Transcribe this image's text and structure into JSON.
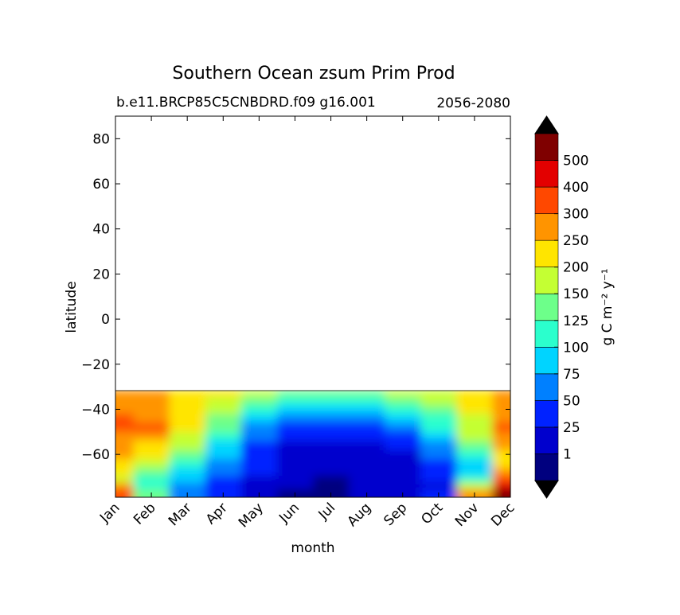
{
  "chart_data": {
    "type": "heatmap",
    "title": "Southern Ocean zsum Prim Prod",
    "subtitle_left": "b.e11.BRCP85C5CNBDRD.f09 g16.001",
    "subtitle_right": "2056-2080",
    "xlabel": "month",
    "ylabel": "latitude",
    "x_ticks": [
      "Jan",
      "Feb",
      "Mar",
      "Apr",
      "May",
      "Jun",
      "Jul",
      "Aug",
      "Sep",
      "Oct",
      "Nov",
      "Dec"
    ],
    "y_ticks": [
      80,
      60,
      40,
      20,
      0,
      -20,
      -40,
      -60
    ],
    "ylim": [
      -79,
      90
    ],
    "data_lat_max": -31.5,
    "colorbar": {
      "label": "g C m⁻² y⁻¹",
      "tick_labels": [
        "1",
        "25",
        "50",
        "75",
        "100",
        "125",
        "150",
        "200",
        "250",
        "300",
        "400",
        "500"
      ],
      "colors": [
        "#00007f",
        "#0000cd",
        "#0022ff",
        "#0080ff",
        "#00d4ff",
        "#2bffcd",
        "#6dff8a",
        "#c4ff33",
        "#ffe500",
        "#ff9400",
        "#ff4800",
        "#e30000",
        "#7f0000"
      ],
      "under_color": "#000000",
      "over_color": "#000000",
      "extend": "both"
    },
    "lat_rows": [
      -33,
      -36,
      -40,
      -44,
      -48,
      -52,
      -56,
      -60,
      -64,
      -68,
      -71,
      -74,
      -77
    ],
    "level_grid": [
      [
        9,
        9,
        8,
        8,
        7,
        6,
        6,
        6,
        7,
        7,
        8,
        9
      ],
      [
        9,
        9,
        8,
        7,
        6,
        5,
        5,
        5,
        6,
        7,
        8,
        9
      ],
      [
        9,
        9,
        8,
        7,
        5,
        4,
        4,
        4,
        5,
        6,
        8,
        9
      ],
      [
        10,
        9,
        8,
        6,
        4,
        3,
        3,
        3,
        4,
        5,
        7,
        9
      ],
      [
        10,
        10,
        8,
        6,
        3,
        2,
        2,
        2,
        3,
        5,
        7,
        10
      ],
      [
        9,
        9,
        7,
        5,
        3,
        2,
        2,
        2,
        2,
        4,
        7,
        9
      ],
      [
        9,
        8,
        7,
        4,
        2,
        1,
        1,
        1,
        2,
        3,
        6,
        9
      ],
      [
        9,
        8,
        6,
        4,
        2,
        1,
        1,
        1,
        1,
        3,
        5,
        8
      ],
      [
        8,
        7,
        5,
        3,
        2,
        1,
        1,
        1,
        1,
        2,
        4,
        8
      ],
      [
        8,
        6,
        4,
        3,
        2,
        1,
        1,
        1,
        1,
        2,
        4,
        9
      ],
      [
        7,
        5,
        4,
        2,
        1,
        1,
        0,
        1,
        1,
        2,
        5,
        10
      ],
      [
        9,
        5,
        3,
        2,
        1,
        1,
        0,
        1,
        1,
        1,
        7,
        11
      ],
      [
        10,
        6,
        3,
        2,
        1,
        0,
        0,
        1,
        1,
        2,
        9,
        12
      ]
    ]
  }
}
